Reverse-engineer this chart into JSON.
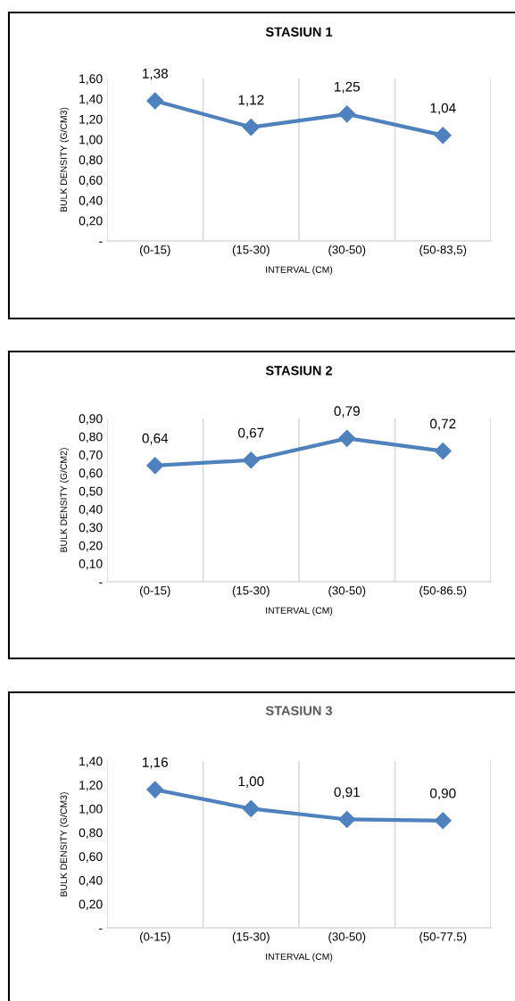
{
  "chart_data": [
    {
      "type": "line",
      "title": "STASIUN 1",
      "xlabel": "INTERVAL (CM)",
      "ylabel": "BULK DENSITY (G/CM3)",
      "categories": [
        "(0-15)",
        "(15-30)",
        "(30-50)",
        "(50-83,5)"
      ],
      "series": [
        {
          "color": "#4f81bd",
          "values": [
            1.38,
            1.12,
            1.25,
            1.04
          ],
          "value_labels": [
            "1,38",
            "1,12",
            "1,25",
            "1,04"
          ]
        }
      ],
      "ylim": [
        0,
        1.6
      ],
      "yticks": [
        {
          "value": 0,
          "label": "-"
        },
        {
          "value": 0.2,
          "label": "0,20"
        },
        {
          "value": 0.4,
          "label": "0,40"
        },
        {
          "value": 0.6,
          "label": "0,60"
        },
        {
          "value": 0.8,
          "label": "0,80"
        },
        {
          "value": 1.0,
          "label": "1,00"
        },
        {
          "value": 1.2,
          "label": "1,20"
        },
        {
          "value": 1.4,
          "label": "1,40"
        },
        {
          "value": 1.6,
          "label": "1,60"
        }
      ],
      "grid": "x",
      "legend": false,
      "marker": "diamond",
      "line_style": "solid"
    },
    {
      "type": "line",
      "title": "STASIUN 2",
      "xlabel": "INTERVAL (CM)",
      "ylabel": "BULK DENSITY (G/CM2)",
      "categories": [
        "(0-15)",
        "(15-30)",
        "(30-50)",
        "(50-86.5)"
      ],
      "series": [
        {
          "color": "#4f81bd",
          "values": [
            0.64,
            0.67,
            0.79,
            0.72
          ],
          "value_labels": [
            "0,64",
            "0,67",
            "0,79",
            "0,72"
          ]
        }
      ],
      "ylim": [
        0,
        0.9
      ],
      "yticks": [
        {
          "value": 0,
          "label": "-"
        },
        {
          "value": 0.1,
          "label": "0,10"
        },
        {
          "value": 0.2,
          "label": "0,20"
        },
        {
          "value": 0.3,
          "label": "0,30"
        },
        {
          "value": 0.4,
          "label": "0,40"
        },
        {
          "value": 0.5,
          "label": "0,50"
        },
        {
          "value": 0.6,
          "label": "0,60"
        },
        {
          "value": 0.7,
          "label": "0,70"
        },
        {
          "value": 0.8,
          "label": "0,80"
        },
        {
          "value": 0.9,
          "label": "0,90"
        }
      ],
      "grid": "x",
      "legend": false,
      "marker": "diamond",
      "line_style": "solid"
    },
    {
      "type": "line",
      "title": "STASIUN 3",
      "xlabel": "INTERVAL (CM)",
      "ylabel": "BULK DENSITY (G/CM3)",
      "categories": [
        "(0-15)",
        "(15-30)",
        "(30-50)",
        "(50-77.5)"
      ],
      "series": [
        {
          "color": "#4f81bd",
          "values": [
            1.16,
            1.0,
            0.91,
            0.9
          ],
          "value_labels": [
            "1,16",
            "1,00",
            "0,91",
            "0,90"
          ]
        }
      ],
      "ylim": [
        0,
        1.4
      ],
      "yticks": [
        {
          "value": 0,
          "label": "-"
        },
        {
          "value": 0.2,
          "label": "0,20"
        },
        {
          "value": 0.4,
          "label": "0,40"
        },
        {
          "value": 0.6,
          "label": "0,60"
        },
        {
          "value": 0.8,
          "label": "0,80"
        },
        {
          "value": 1.0,
          "label": "1,00"
        },
        {
          "value": 1.2,
          "label": "1,20"
        },
        {
          "value": 1.4,
          "label": "1,40"
        }
      ],
      "grid": "x",
      "legend": false,
      "marker": "diamond",
      "line_style": "solid"
    }
  ]
}
